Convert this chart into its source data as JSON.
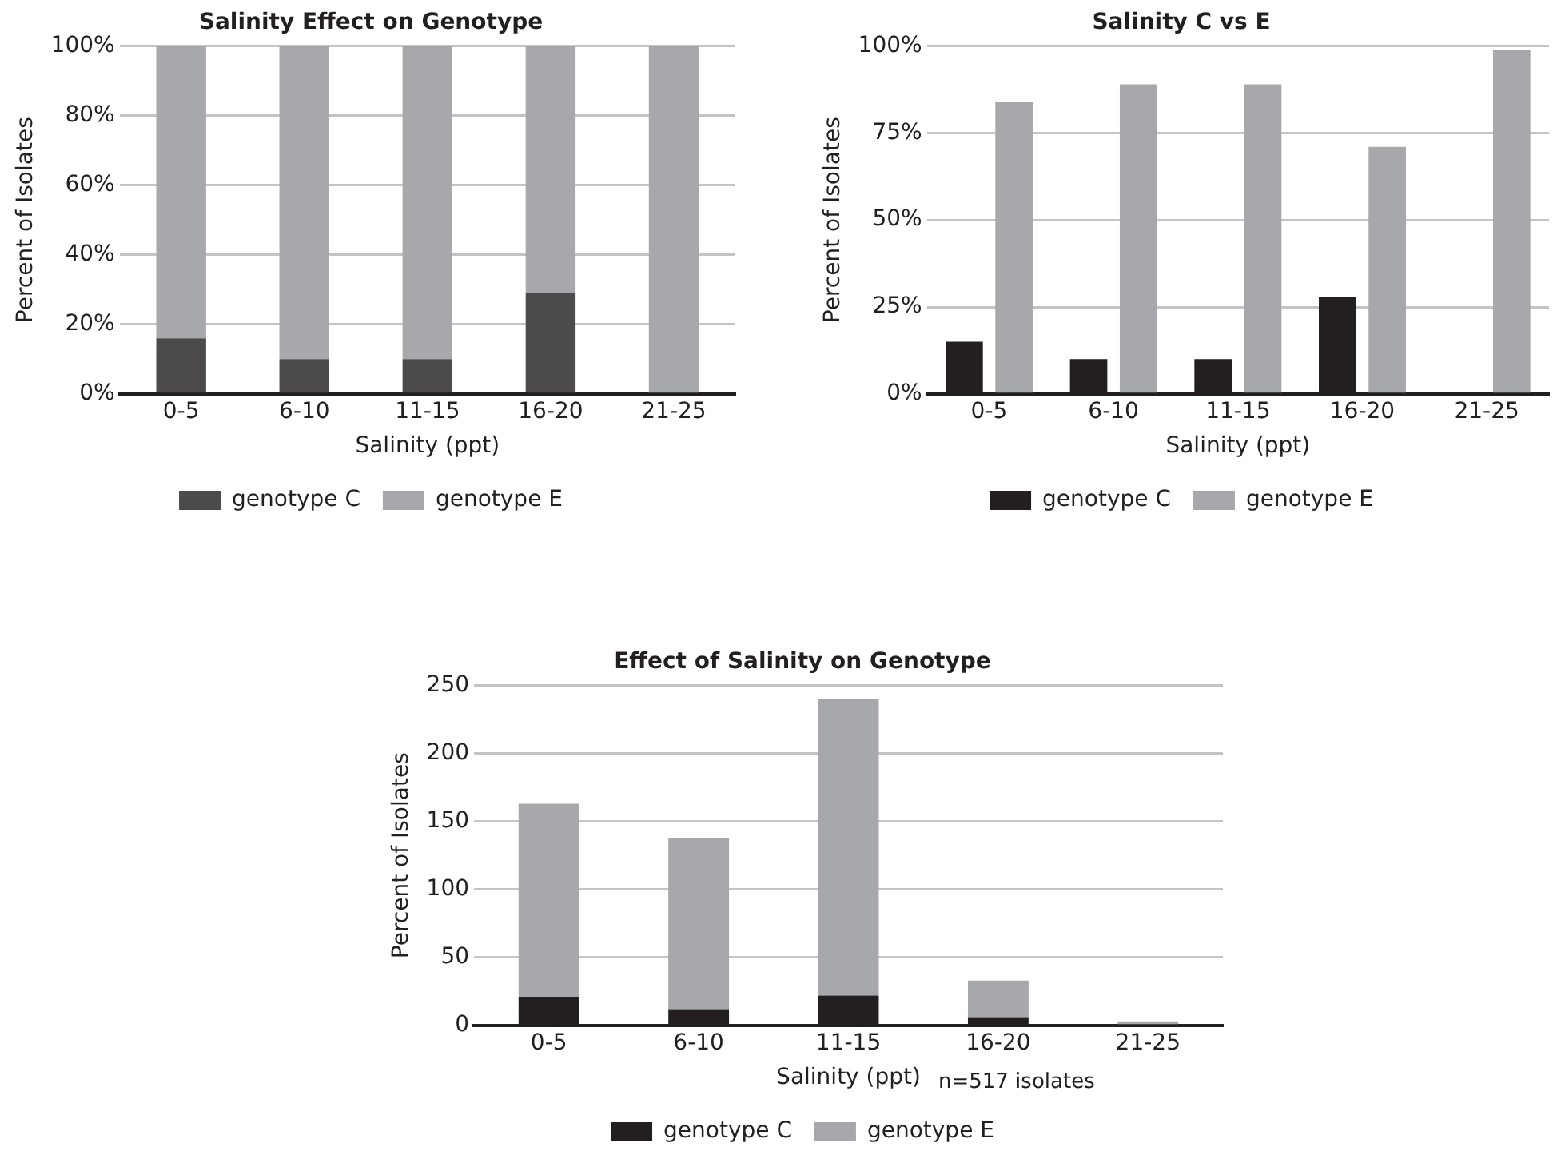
{
  "chart_data": [
    {
      "type": "bar",
      "title": "Salinity Effect on Genotype",
      "xlabel": "Salinity (ppt)",
      "ylabel": "Percent of Isolates",
      "categories": [
        "0-5",
        "6-10",
        "11-15",
        "16-20",
        "21-25"
      ],
      "series": [
        {
          "name": "genotype C",
          "color": "#4d4a4b",
          "values": [
            16,
            10,
            10,
            29,
            0
          ]
        },
        {
          "name": "genotype E",
          "color": "#a7a8ab",
          "values": [
            84,
            90,
            90,
            71,
            100
          ]
        }
      ],
      "stacked": true,
      "ylim": [
        0,
        100
      ],
      "yticks": [
        {
          "value": 0,
          "label": "0%"
        },
        {
          "value": 20,
          "label": "20%"
        },
        {
          "value": 40,
          "label": "40%"
        },
        {
          "value": 60,
          "label": "60%"
        },
        {
          "value": 80,
          "label": "80%"
        },
        {
          "value": 100,
          "label": "100%"
        }
      ],
      "grid": "y",
      "legend": "bottom"
    },
    {
      "type": "bar",
      "title": "Salinity C vs E",
      "xlabel": "Salinity (ppt)",
      "ylabel": "Percent of Isolates",
      "categories": [
        "0-5",
        "6-10",
        "11-15",
        "16-20",
        "21-25"
      ],
      "series": [
        {
          "name": "genotype C",
          "color": "#231f20",
          "values": [
            15,
            10,
            10,
            28,
            0
          ]
        },
        {
          "name": "genotype E",
          "color": "#a7a8ab",
          "values": [
            84,
            89,
            89,
            71,
            99
          ]
        }
      ],
      "ylim": [
        0,
        100
      ],
      "yticks": [
        {
          "value": 0,
          "label": "0%"
        },
        {
          "value": 25,
          "label": "25%"
        },
        {
          "value": 50,
          "label": "50%"
        },
        {
          "value": 75,
          "label": "75%"
        },
        {
          "value": 100,
          "label": "100%"
        }
      ],
      "grid": "y",
      "legend": "bottom"
    },
    {
      "type": "bar",
      "title": "Effect of Salinity on Genotype",
      "xlabel": "Salinity (ppt)",
      "ylabel": "Percent of Isolates",
      "categories": [
        "0-5",
        "6-10",
        "11-15",
        "16-20",
        "21-25"
      ],
      "series": [
        {
          "name": "genotype C",
          "color": "#231f20",
          "values": [
            21,
            12,
            22,
            6,
            0
          ]
        },
        {
          "name": "genotype E",
          "color": "#a7a8ab",
          "values": [
            142,
            126,
            218,
            27,
            3
          ]
        }
      ],
      "stacked": true,
      "ylim": [
        0,
        250
      ],
      "yticks": [
        0,
        50,
        100,
        150,
        200,
        250
      ],
      "grid": "y",
      "legend": "bottom",
      "annotations": [
        "n=517 isolates"
      ]
    }
  ]
}
